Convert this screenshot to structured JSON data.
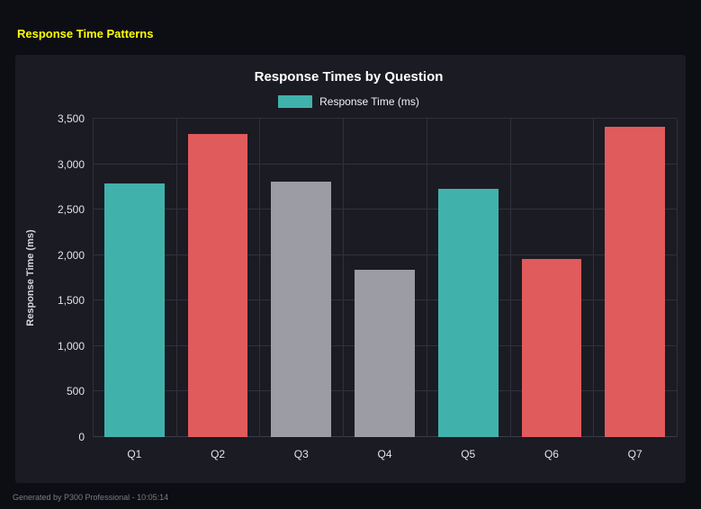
{
  "page": {
    "title": "Response Time Patterns",
    "footer": "Generated by P300 Professional - 10:05:14"
  },
  "chart_data": {
    "type": "bar",
    "title": "Response Times by Question",
    "legend": [
      {
        "label": "Response Time (ms)",
        "color": "#41b2ab"
      }
    ],
    "legend_position": "top",
    "categories": [
      "Q1",
      "Q2",
      "Q3",
      "Q4",
      "Q5",
      "Q6",
      "Q7"
    ],
    "values": [
      2790,
      3330,
      2810,
      1840,
      2730,
      1960,
      3410
    ],
    "bar_colors": [
      "#41b2ab",
      "#e05b5b",
      "#9c9ca4",
      "#9c9ca4",
      "#41b2ab",
      "#e05b5b",
      "#e05b5b"
    ],
    "xlabel": "",
    "ylabel": "Response Time (ms)",
    "ylim": [
      0,
      3500
    ],
    "ytick_step": 500,
    "ytick_labels": [
      "0",
      "500",
      "1,000",
      "1,500",
      "2,000",
      "2,500",
      "3,000",
      "3,500"
    ],
    "grid": true,
    "colors": {
      "page_background": "#0d0d14",
      "panel_background": "#1b1b24",
      "gridline": "#31313d",
      "title_text": "#ffffff",
      "accent_yellow": "#ffff00"
    }
  }
}
